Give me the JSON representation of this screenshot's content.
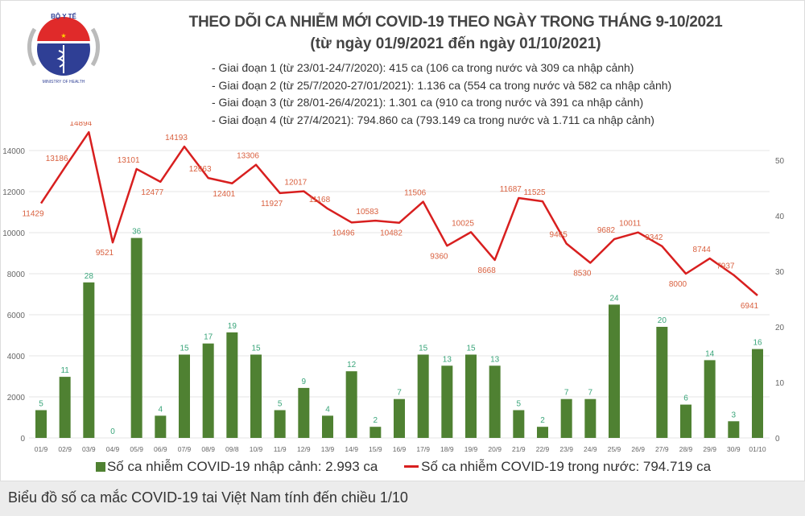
{
  "header": {
    "logo_text": "BỘ Y TẾ MINISTRY OF HEALTH",
    "title": "THEO DÕI CA NHIỄM MỚI COVID-19 THEO NGÀY TRONG THÁNG 9-10/2021",
    "subtitle": "(từ ngày 01/9/2021 đến ngày 01/10/2021)",
    "phases": [
      "- Giai đoạn 1 (từ 23/01-24/7/2020): 415 ca (106 ca trong nước và 309 ca nhập cảnh)",
      "- Giai đoạn 2 (từ 25/7/2020-27/01/2021): 1.136 ca (554 ca trong nước và 582 ca nhập cảnh)",
      "- Giai đoạn 3 (từ 28/01-26/4/2021): 1.301 ca (910 ca trong nước và 391 ca nhập cảnh)",
      "- Giai đoạn 4 (từ 27/4/2021): 794.860 ca (793.149 ca trong nước và 1.711 ca nhập cảnh)"
    ]
  },
  "chart_data": {
    "type": "bar+line",
    "categories": [
      "01/9",
      "02/9",
      "03/9",
      "04/9",
      "05/9",
      "06/9",
      "07/9",
      "08/9",
      "09/8",
      "10/9",
      "11/9",
      "12/9",
      "13/9",
      "14/9",
      "15/9",
      "16/9",
      "17/9",
      "18/9",
      "19/9",
      "20/9",
      "21/9",
      "22/9",
      "23/9",
      "24/9",
      "25/9",
      "26/9",
      "27/9",
      "28/9",
      "29/9",
      "30/9",
      "01/10"
    ],
    "series": [
      {
        "name": "Số ca nhiễm COVID-19 nhập cảnh: 2.993 ca",
        "type": "bar",
        "axis": "right",
        "color": "#4f8132",
        "label_color": "#3aa57a",
        "values": [
          5,
          11,
          28,
          0,
          36,
          4,
          15,
          17,
          19,
          15,
          5,
          9,
          4,
          12,
          2,
          7,
          15,
          13,
          15,
          13,
          5,
          2,
          7,
          7,
          24,
          null,
          20,
          6,
          14,
          3,
          16
        ]
      },
      {
        "name": "Số ca nhiễm COVID-19 trong nước: 794.719 ca",
        "type": "line",
        "axis": "left",
        "color": "#d81f1f",
        "label_color": "#d9603f",
        "values": [
          11429,
          13186,
          14894,
          9521,
          13101,
          12477,
          14193,
          12663,
          12401,
          13306,
          11927,
          12017,
          11168,
          10496,
          10583,
          10482,
          11506,
          9360,
          10025,
          8668,
          11687,
          11525,
          9465,
          8530,
          9682,
          10011,
          9342,
          8000,
          8744,
          7937,
          6941
        ]
      }
    ],
    "left_axis": {
      "ticks": [
        0,
        2000,
        4000,
        6000,
        8000,
        10000,
        12000,
        14000
      ],
      "range": [
        0,
        14000
      ]
    },
    "right_axis": {
      "ticks": [
        0,
        10,
        20,
        30,
        40,
        50
      ],
      "range": [
        0,
        50
      ]
    },
    "grid": true,
    "legend_placement": "bottom"
  },
  "caption": "Biểu đồ số ca mắc COVID-19 tai Việt Nam tính đến chiều 1/10"
}
